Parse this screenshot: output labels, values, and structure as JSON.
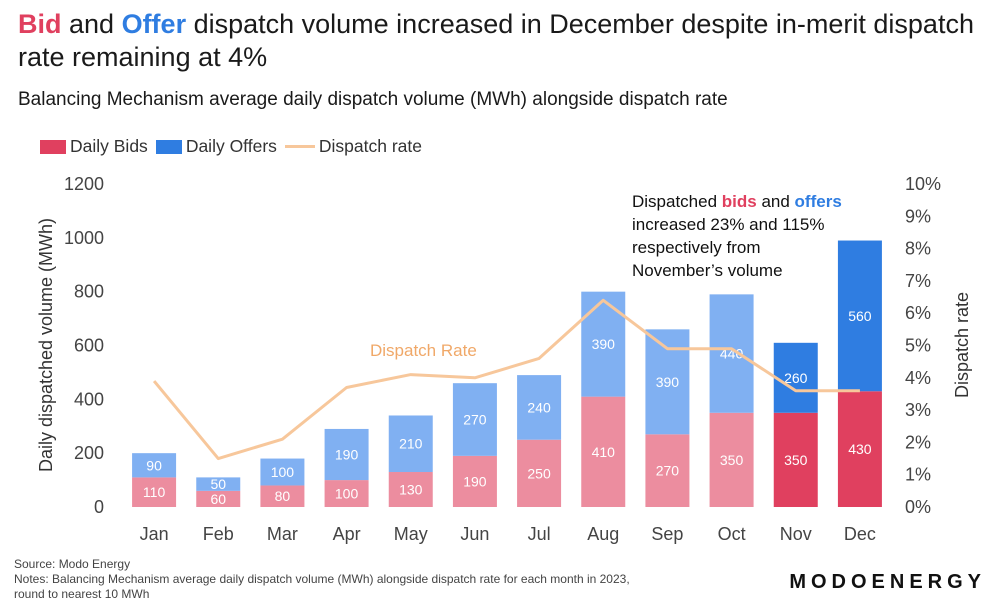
{
  "title": {
    "bid_word": "Bid",
    "and_word": " and ",
    "offer_word": "Offer",
    "rest": " dispatch volume increased in December despite in-merit dispatch rate remaining at 4%"
  },
  "subtitle": "Balancing Mechanism average daily dispatch volume (MWh) alongside dispatch rate",
  "colors": {
    "bids_light": "#ec8d9f",
    "bids_dark": "#e0405f",
    "offers_light": "#80b0f2",
    "offers_dark": "#2f7de1",
    "rate_line": "#f7c79b",
    "rate_label": "#f0a868"
  },
  "annotation": {
    "p1": "Dispatched ",
    "bids": "bids",
    "p2": " and ",
    "offers": "offers",
    "p3": " increased 23% and 115% respectively from November’s volume"
  },
  "footer": {
    "source": "Source: Modo Energy",
    "notes_line1": "Notes: Balancing Mechanism average daily dispatch volume (MWh) alongside dispatch rate for each month in 2023,",
    "notes_line2": "round to nearest 10 MWh",
    "brand": "MODOENERGY"
  },
  "chart_data": {
    "type": "bar",
    "stacked": true,
    "categories": [
      "Jan",
      "Feb",
      "Mar",
      "Apr",
      "May",
      "Jun",
      "Jul",
      "Aug",
      "Sep",
      "Oct",
      "Nov",
      "Dec"
    ],
    "series": [
      {
        "name": "Daily Bids",
        "values": [
          110,
          60,
          80,
          100,
          130,
          190,
          250,
          410,
          270,
          350,
          350,
          430
        ]
      },
      {
        "name": "Daily Offers",
        "values": [
          90,
          50,
          100,
          190,
          210,
          270,
          240,
          390,
          390,
          440,
          260,
          560
        ]
      }
    ],
    "line_series": {
      "name": "Dispatch rate",
      "values": [
        3.9,
        1.5,
        2.1,
        3.7,
        4.1,
        4.0,
        4.6,
        6.4,
        4.9,
        4.9,
        3.6,
        3.6
      ],
      "label": "Dispatch Rate"
    },
    "highlighted_categories": [
      "Nov",
      "Dec"
    ],
    "ylabel": "Daily dispatched volume (MWh)",
    "ylabel_right": "Dispatch rate",
    "ylim": [
      0,
      1200
    ],
    "yticks": [
      "0",
      "200",
      "400",
      "600",
      "800",
      "1000",
      "1200"
    ],
    "ylim_right": [
      0,
      10
    ],
    "yticks_right": [
      "0%",
      "1%",
      "2%",
      "3%",
      "4%",
      "5%",
      "6%",
      "7%",
      "8%",
      "9%",
      "10%"
    ],
    "legend": [
      "Daily Bids",
      "Daily Offers",
      "Dispatch rate"
    ],
    "legend_position": "top-left",
    "grid": false
  }
}
